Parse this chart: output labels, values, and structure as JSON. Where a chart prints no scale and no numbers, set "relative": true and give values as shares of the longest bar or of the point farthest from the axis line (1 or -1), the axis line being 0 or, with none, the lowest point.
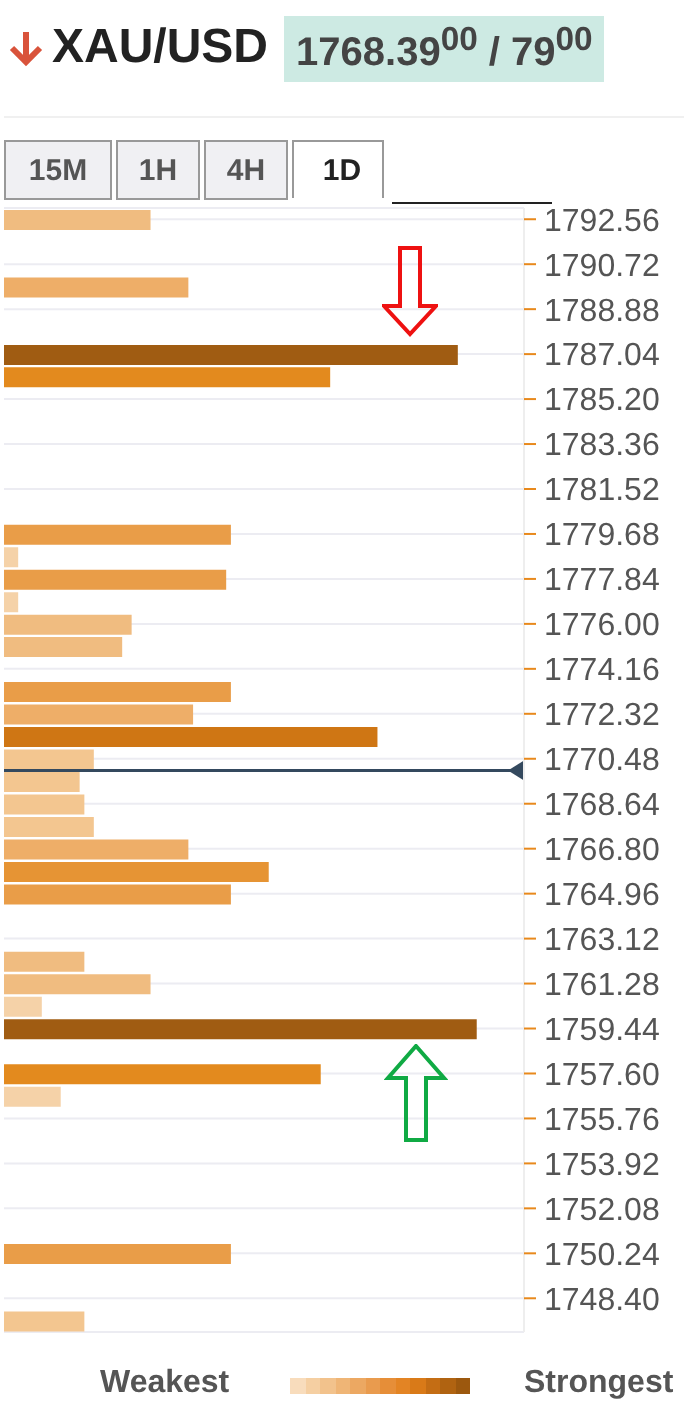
{
  "chart_data": {
    "type": "bar",
    "orientation": "horizontal",
    "relative": true,
    "title": "XAU/USD",
    "subtitle": "1768.39$^{00}$ / 79$^{00}$",
    "annotations": [
      "15M",
      "1H",
      "4H",
      "1D",
      "Weakest",
      "Strongest"
    ],
    "x": [
      1792.56,
      1791.64,
      1790.72,
      1789.8,
      1788.88,
      1787.96,
      1787.04,
      1786.12,
      1785.2,
      1784.28,
      1783.36,
      1782.44,
      1781.52,
      1780.6,
      1779.68,
      1778.76,
      1777.84,
      1776.92,
      1776,
      1775.08,
      1774.16,
      1773.24,
      1772.32,
      1771.4,
      1770.48,
      1769.56,
      1768.64,
      1767.72,
      1766.8,
      1765.88,
      1764.96,
      1764.04,
      1763.12,
      1762.2,
      1761.28,
      1760.36,
      1759.44,
      1758.52,
      1757.6,
      1756.68,
      1755.76,
      1754.84,
      1753.92,
      1753,
      1752.08,
      1751.16,
      1750.24,
      1749.32,
      1748.4,
      1747.48
    ],
    "values": [
      0.31,
      null,
      null,
      0.39,
      null,
      null,
      0.96,
      0.69,
      null,
      null,
      null,
      null,
      null,
      null,
      0.48,
      0.03,
      0.47,
      0.03,
      0.27,
      0.25,
      null,
      0.48,
      0.4,
      0.79,
      0.19,
      0.16,
      0.17,
      0.19,
      0.39,
      0.56,
      0.48,
      null,
      null,
      0.17,
      0.31,
      0.08,
      1,
      null,
      0.67,
      0.12,
      null,
      null,
      null,
      null,
      null,
      null,
      0.48,
      null,
      null,
      0.17
    ],
    "colors": [
      "#f0bc80",
      "#f0bc80",
      "#f0bc80",
      "#eeae68",
      "#f0bc80",
      "#f0bc80",
      "#a05c12",
      "#e38a1e",
      "#f0bc80",
      "#f0bc80",
      "#f0bc80",
      "#f0bc80",
      "#f0bc80",
      "#f0bc80",
      "#e99d48",
      "#f5d2a8",
      "#e99d48",
      "#f5d2a8",
      "#f0bc80",
      "#f0bc80",
      "#f0bc80",
      "#e99d48",
      "#eeae68",
      "#cf7614",
      "#f3c690",
      "#f3c690",
      "#f3c690",
      "#f3c690",
      "#eeae68",
      "#e69434",
      "#e99d48",
      "#f0bc80",
      "#f0bc80",
      "#f0bc80",
      "#f0bc80",
      "#f5d2a8",
      "#a05c12",
      "#f0bc80",
      "#e38a1e",
      "#f5d2a8",
      "#f0bc80",
      "#f0bc80",
      "#f0bc80",
      "#f0bc80",
      "#f0bc80",
      "#f0bc80",
      "#e99d48",
      "#f0bc80",
      "#f0bc80",
      "#f3c690"
    ],
    "ylim": [
      1747.02,
      1793.02
    ],
    "yticks": [
      1792.56,
      1790.72,
      1788.88,
      1787.04,
      {
        "value": 1785.2,
        "label": "1785.20"
      },
      1783.36,
      1781.52,
      1779.68,
      1777.84,
      {
        "value": 1776,
        "label": "1776.00"
      },
      1774.16,
      1772.32,
      1770.48,
      1768.64,
      {
        "value": 1766.8,
        "label": "1766.80"
      },
      1764.96,
      1763.12,
      1761.28,
      1759.44,
      {
        "value": 1757.6,
        "label": "1757.60"
      },
      1755.76,
      1753.92,
      1752.08,
      1750.24,
      {
        "value": 1748.4,
        "label": "1748.40"
      }
    ],
    "grid": "y",
    "ref_lines": [
      {
        "axis": "y",
        "value": 1770.0,
        "color": "#34495e"
      }
    ]
  }
}
